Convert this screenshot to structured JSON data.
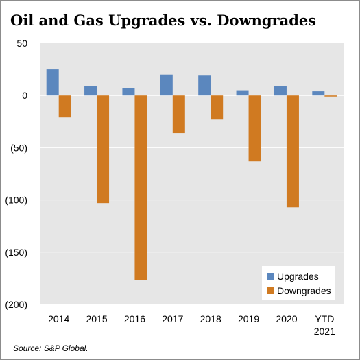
{
  "title": "Oil and Gas Upgrades vs. Downgrades",
  "source": "Source: S&P Global.",
  "colors": {
    "upgrades": "#5b87be",
    "downgrades": "#d07a21",
    "plot_bg": "#e6e6e6",
    "grid": "#ffffff"
  },
  "chart_data": {
    "type": "bar",
    "title": "Oil and Gas Upgrades vs. Downgrades",
    "categories": [
      "2014",
      "2015",
      "2016",
      "2017",
      "2018",
      "2019",
      "2020",
      "YTD 2021"
    ],
    "series": [
      {
        "name": "Upgrades",
        "values": [
          25,
          9,
          7,
          20,
          19,
          5,
          9,
          4
        ]
      },
      {
        "name": "Downgrades",
        "values": [
          -21,
          -103,
          -177,
          -36,
          -23,
          -63,
          -107,
          -1
        ]
      }
    ],
    "ylim": [
      -200,
      50
    ],
    "yticks": [
      50,
      0,
      -50,
      -100,
      -150,
      -200
    ],
    "ytick_labels": [
      "50",
      "0",
      "(50)",
      "(100)",
      "(150)",
      "(200)"
    ],
    "grid": true,
    "legend": "bottom-right",
    "xlabel": "",
    "ylabel": ""
  }
}
